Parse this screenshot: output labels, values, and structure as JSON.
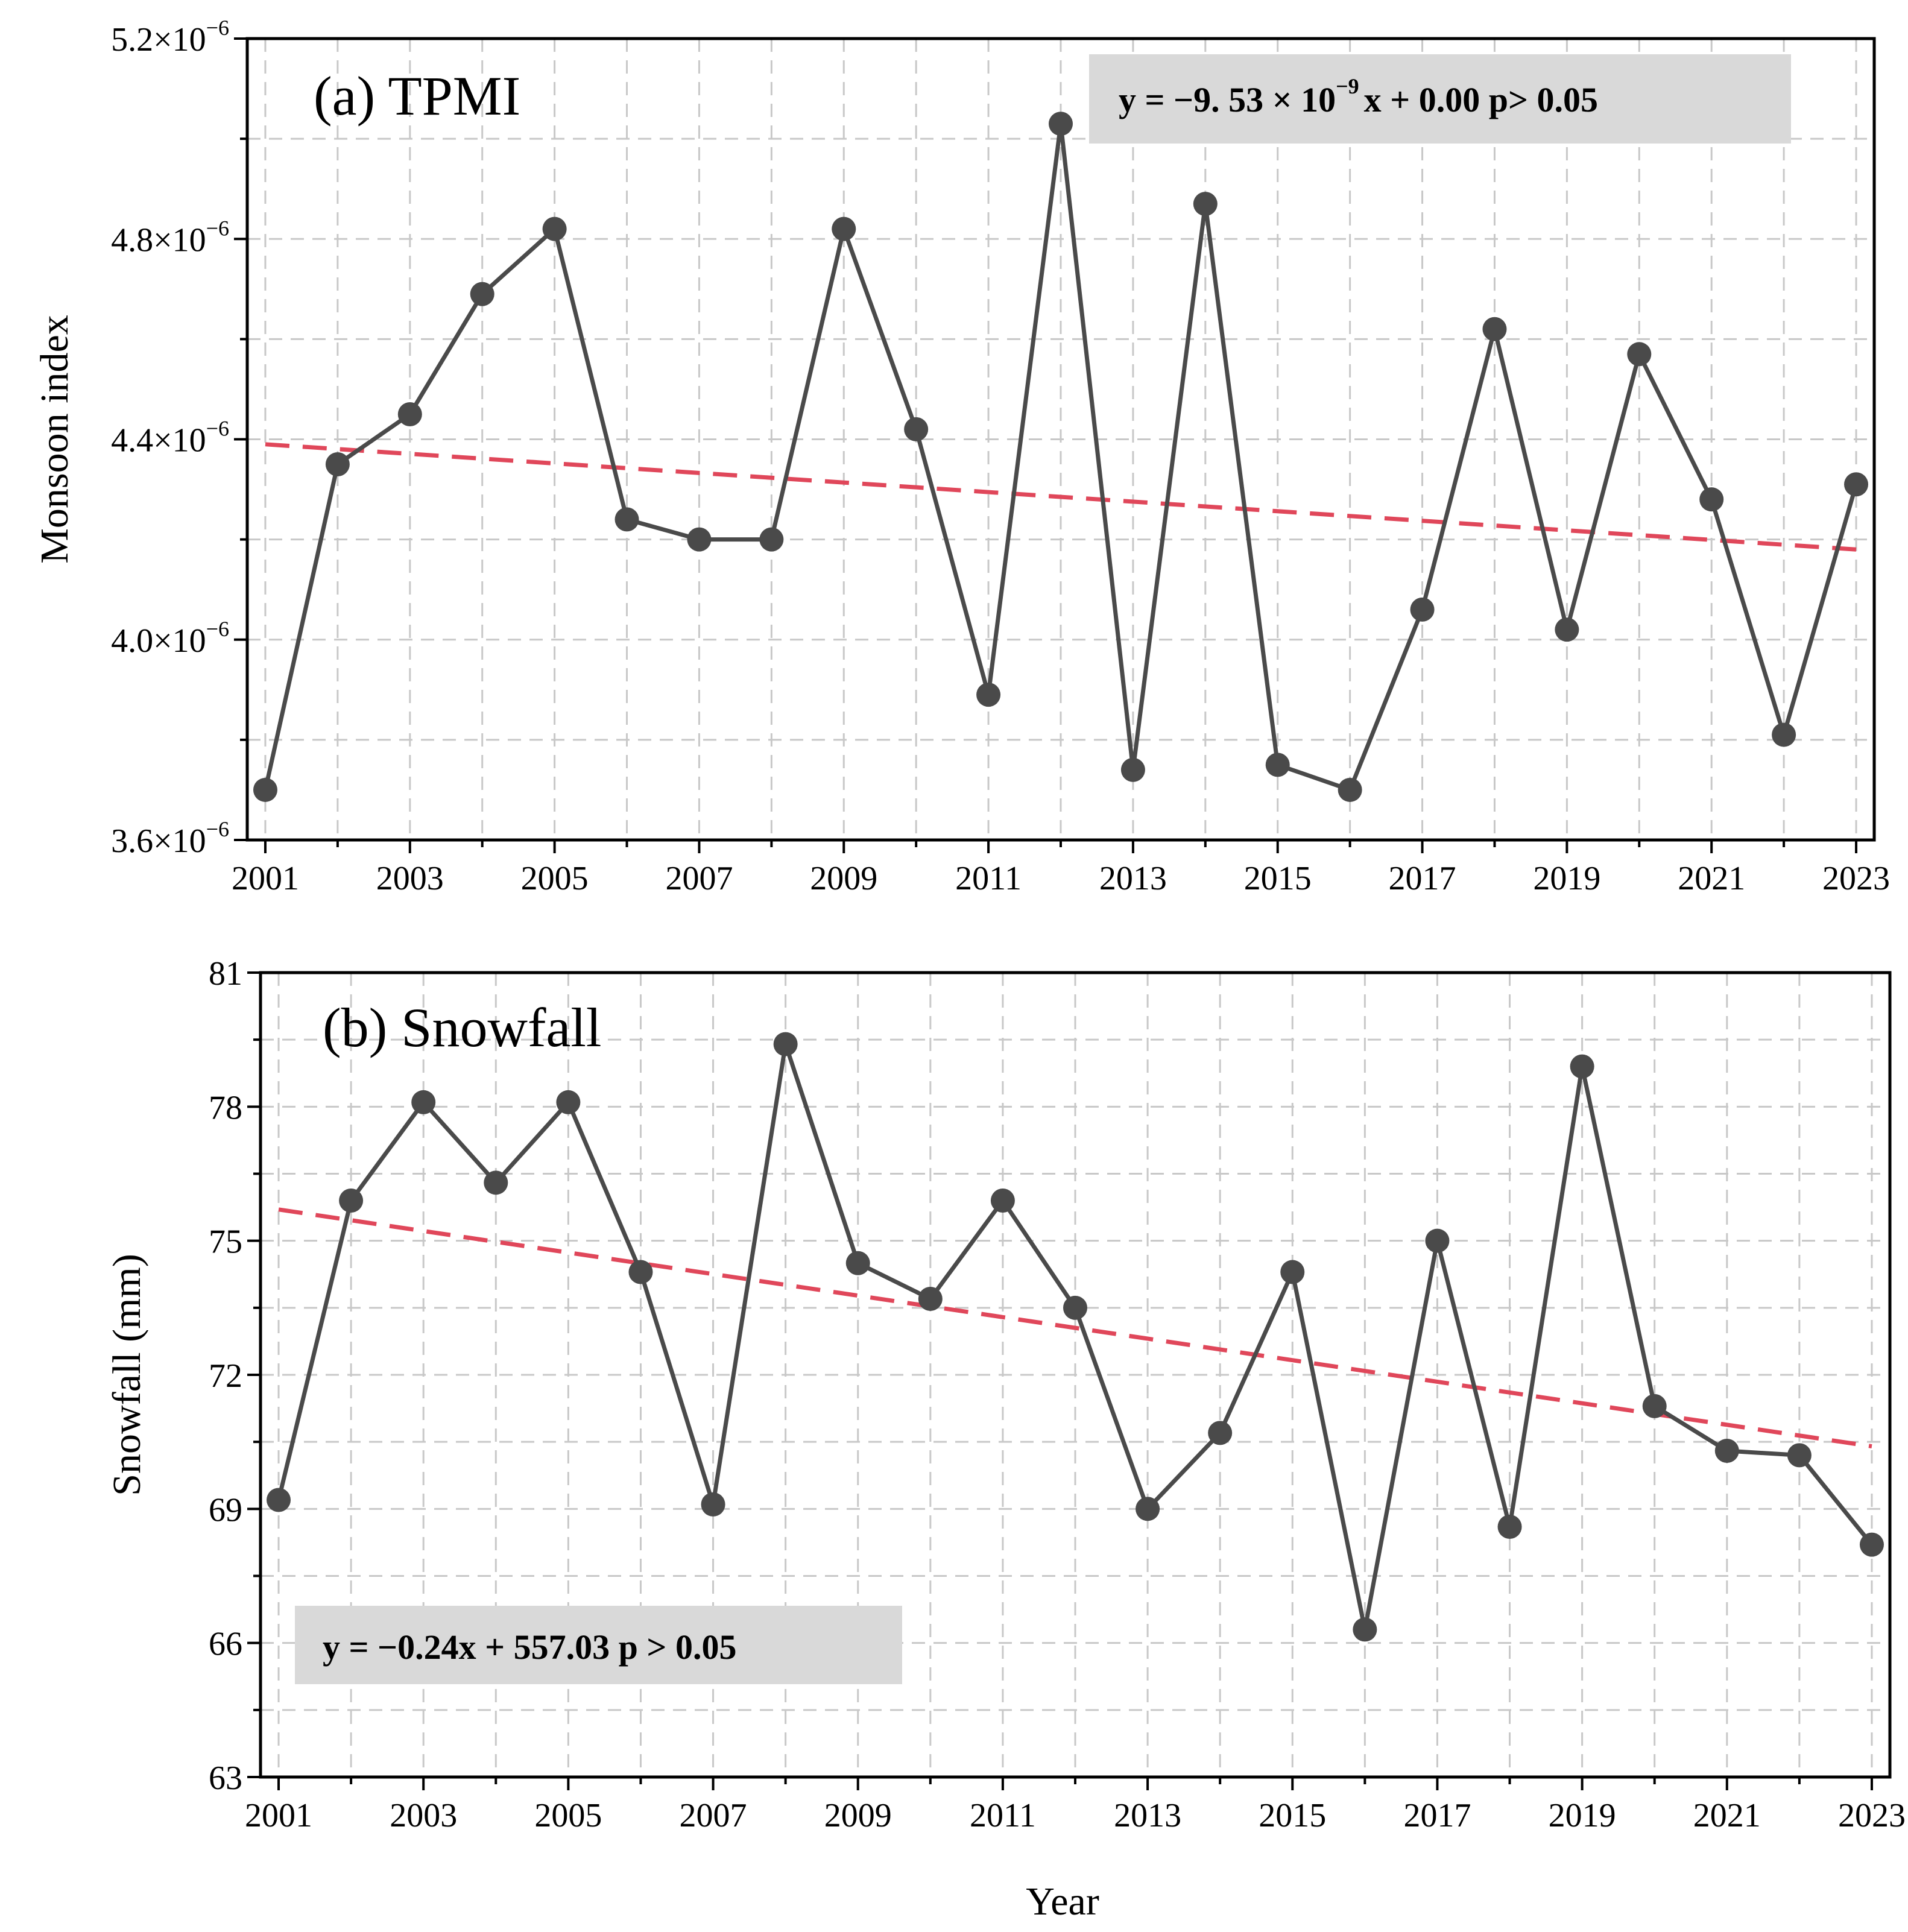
{
  "chart_data": [
    {
      "type": "line",
      "id": "a",
      "title": "(a) TPMI",
      "ylabel": "Monsoon index",
      "xlabel": "",
      "ylim": [
        3.6e-06,
        5.2e-06
      ],
      "yticks": [
        {
          "value": 3.6e-06,
          "mantissa": "3.6×10",
          "exp": "−6"
        },
        {
          "value": 4e-06,
          "mantissa": "4.0×10",
          "exp": "−6"
        },
        {
          "value": 4.4e-06,
          "mantissa": "4.4×10",
          "exp": "−6"
        },
        {
          "value": 4.8e-06,
          "mantissa": "4.8×10",
          "exp": "−6"
        },
        {
          "value": 5.2e-06,
          "mantissa": "5.2×10",
          "exp": "−6"
        }
      ],
      "xticks": [
        "2001",
        "2003",
        "2005",
        "2007",
        "2009",
        "2011",
        "2013",
        "2015",
        "2017",
        "2019",
        "2021",
        "2023"
      ],
      "x": [
        2001,
        2002,
        2003,
        2004,
        2005,
        2006,
        2007,
        2008,
        2009,
        2010,
        2011,
        2012,
        2013,
        2014,
        2015,
        2016,
        2017,
        2018,
        2019,
        2020,
        2021,
        2022,
        2023
      ],
      "values": [
        3.7e-06,
        4.35e-06,
        4.45e-06,
        4.69e-06,
        4.82e-06,
        4.24e-06,
        4.2e-06,
        4.2e-06,
        4.82e-06,
        4.42e-06,
        3.89e-06,
        5.03e-06,
        3.74e-06,
        4.87e-06,
        3.75e-06,
        3.7e-06,
        4.06e-06,
        4.62e-06,
        4.02e-06,
        4.57e-06,
        4.28e-06,
        3.81e-06,
        4.31e-06
      ],
      "trend": {
        "start": [
          2001,
          4.39e-06
        ],
        "end": [
          2023,
          4.18e-06
        ]
      },
      "equation": {
        "prefix": "y = −9. 53 × 10",
        "exp": "−9",
        "suffix": "x + 0.00  p> 0.05"
      },
      "colors": {
        "series": "#4a4a4a",
        "trend": "#e0475a",
        "box": "#d9d9d9",
        "grid": "#c8c8c8"
      }
    },
    {
      "type": "line",
      "id": "b",
      "title": "(b) Snowfall",
      "ylabel": "Snowfall (mm)",
      "xlabel": "Year",
      "ylim": [
        63,
        81
      ],
      "yticks": [
        {
          "value": 63,
          "label": "63"
        },
        {
          "value": 66,
          "label": "66"
        },
        {
          "value": 69,
          "label": "69"
        },
        {
          "value": 72,
          "label": "72"
        },
        {
          "value": 75,
          "label": "75"
        },
        {
          "value": 78,
          "label": "78"
        },
        {
          "value": 81,
          "label": "81"
        }
      ],
      "xticks": [
        "2001",
        "2003",
        "2005",
        "2007",
        "2009",
        "2011",
        "2013",
        "2015",
        "2017",
        "2019",
        "2021",
        "2023"
      ],
      "x": [
        2001,
        2002,
        2003,
        2004,
        2005,
        2006,
        2007,
        2008,
        2009,
        2010,
        2011,
        2012,
        2013,
        2014,
        2015,
        2016,
        2017,
        2018,
        2019,
        2020,
        2021,
        2022,
        2023
      ],
      "values": [
        69.2,
        75.9,
        78.1,
        76.3,
        78.1,
        74.3,
        69.1,
        79.4,
        74.5,
        73.7,
        75.9,
        73.5,
        69.0,
        70.7,
        74.3,
        66.3,
        75.0,
        68.6,
        78.9,
        71.3,
        70.3,
        70.2,
        68.2
      ],
      "trend": {
        "start": [
          2001,
          75.7
        ],
        "end": [
          2023,
          70.4
        ]
      },
      "equation": {
        "prefix": "y = −0.24x + 557.03  p > 0.05",
        "exp": "",
        "suffix": ""
      },
      "colors": {
        "series": "#4a4a4a",
        "trend": "#e0475a",
        "box": "#d9d9d9",
        "grid": "#c8c8c8"
      }
    }
  ]
}
